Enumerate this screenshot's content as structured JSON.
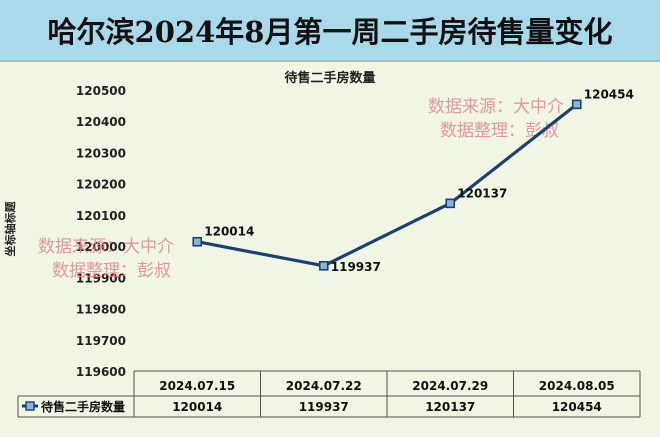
{
  "page_title": "哈尔滨2024年8月第一周二手房待售量变化",
  "chart_data": {
    "type": "line",
    "title": "待售二手房数量",
    "ylabel": "坐标轴标题",
    "xlabel": "",
    "categories": [
      "2024.07.15",
      "2024.07.22",
      "2024.07.29",
      "2024.08.05"
    ],
    "series": [
      {
        "name": "待售二手房数量",
        "values": [
          120014,
          119937,
          120137,
          120454
        ],
        "color": "#1f3f73"
      }
    ],
    "data_labels": [
      "120014",
      "119937",
      "120137",
      "120454"
    ],
    "ylim": [
      119600,
      120500
    ],
    "yticks": [
      "120500",
      "120400",
      "120300",
      "120200",
      "120100",
      "120000",
      "119900",
      "119800",
      "119700",
      "119600"
    ],
    "grid": false,
    "legend": "data-table",
    "data_table": {
      "series_label": "待售二手房数量",
      "values": [
        "120014",
        "119937",
        "120137",
        "120454"
      ]
    }
  },
  "watermarks": [
    {
      "line1": "数据来源：大中介",
      "line2": "数据整理：彭叔"
    },
    {
      "line1": "数据来源：大中介",
      "line2": "数据整理：彭叔"
    }
  ]
}
